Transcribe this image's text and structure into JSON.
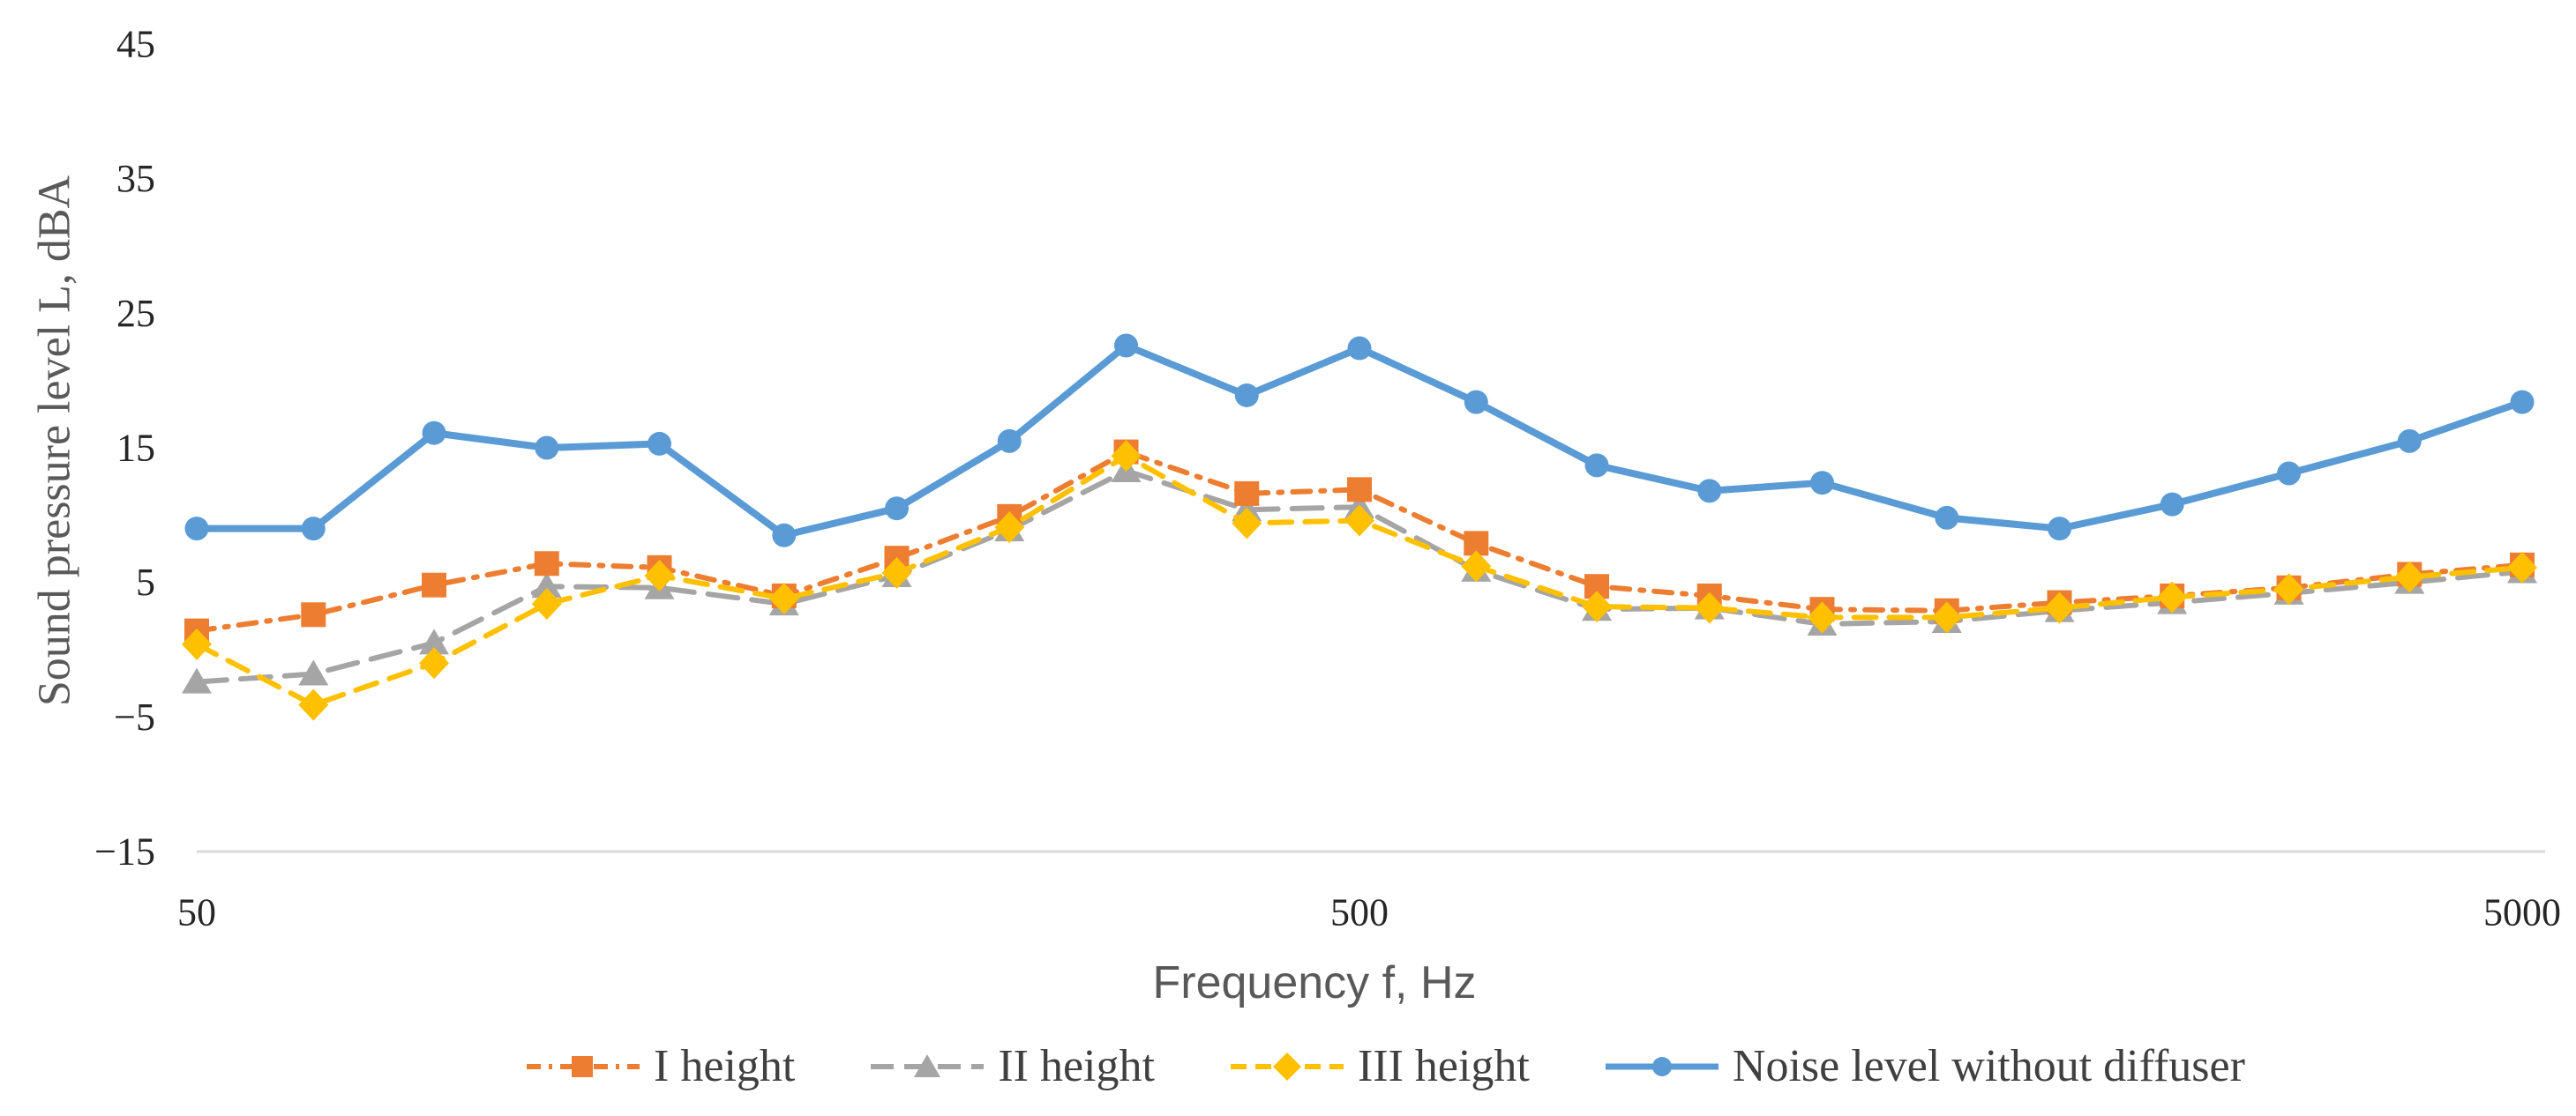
{
  "chart_data": {
    "type": "line",
    "title": "",
    "xlabel": "Frequency f, Hz",
    "ylabel": "Sound pressure level L, dBA",
    "x_scale": "log",
    "xlim": [
      50,
      5000
    ],
    "ylim": [
      -15,
      45
    ],
    "grid": false,
    "legend_position": "bottom",
    "x_ticks": [
      50,
      500,
      5000
    ],
    "x_tick_labels": [
      "50",
      "500",
      "5000"
    ],
    "y_ticks": [
      45,
      35,
      25,
      15,
      5,
      -5,
      -15
    ],
    "y_tick_labels": [
      "45",
      "35",
      "25",
      "15",
      "5",
      "−5",
      "−15"
    ],
    "x": [
      50,
      63,
      80,
      100,
      125,
      160,
      200,
      250,
      315,
      400,
      500,
      630,
      800,
      1000,
      1250,
      1600,
      2000,
      2500,
      3150,
      4000,
      5000
    ],
    "series": [
      {
        "name": "I height",
        "color": "#ED7D31",
        "marker": "square",
        "line_style": "dash-dot",
        "z": 2,
        "values": [
          1.4,
          2.6,
          4.8,
          6.4,
          6.1,
          4.0,
          6.8,
          9.9,
          14.7,
          11.6,
          11.9,
          7.9,
          4.7,
          4.0,
          3.0,
          2.9,
          3.5,
          4.0,
          4.6,
          5.6,
          6.3
        ]
      },
      {
        "name": "II height",
        "color": "#A5A5A5",
        "marker": "triangle",
        "line_style": "long-dash",
        "z": 1,
        "values": [
          -2.4,
          -1.8,
          0.5,
          4.7,
          4.6,
          3.4,
          5.5,
          8.9,
          13.3,
          10.4,
          10.6,
          5.9,
          3.0,
          3.1,
          1.9,
          2.1,
          2.9,
          3.5,
          4.2,
          5.0,
          5.8
        ]
      },
      {
        "name": "III height",
        "color": "#FFC000",
        "marker": "diamond",
        "line_style": "dash",
        "z": 3,
        "values": [
          0.4,
          -4.1,
          -1.0,
          3.4,
          5.5,
          3.8,
          5.7,
          9.1,
          14.4,
          9.4,
          9.6,
          6.2,
          3.2,
          3.1,
          2.4,
          2.4,
          3.1,
          3.9,
          4.5,
          5.4,
          6.1
        ]
      },
      {
        "name": "Noise level without diffuser",
        "color": "#5B9BD5",
        "marker": "circle",
        "line_style": "solid",
        "z": 4,
        "values": [
          9.0,
          9.0,
          16.1,
          15.0,
          15.3,
          8.5,
          10.5,
          15.5,
          22.6,
          18.9,
          22.4,
          18.4,
          13.7,
          11.8,
          12.4,
          9.8,
          9.0,
          10.8,
          13.1,
          15.5,
          18.4
        ]
      }
    ],
    "colors": {
      "axis_line": "#D9D9D9",
      "tick_text": "#262626",
      "axis_title_text": "#595959",
      "legend_text": "#404040",
      "background": "#FFFFFF"
    }
  }
}
